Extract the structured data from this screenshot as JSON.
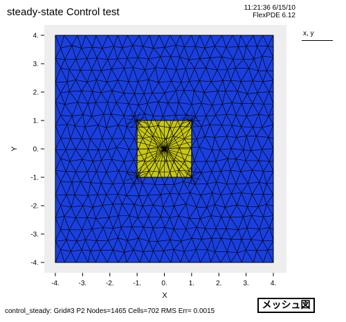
{
  "header": {
    "title": "steady-state Control test",
    "time": "11:21:36 6/15/10",
    "version": "FlexPDE 6.12"
  },
  "side_panel": {
    "label": "x, y"
  },
  "plot": {
    "x_ticks": [
      "-4.",
      "-3.",
      "-2.",
      "-1.",
      "0.",
      "1.",
      "2.",
      "3.",
      "4."
    ],
    "y_ticks": [
      "4.",
      "3.",
      "2.",
      "1.",
      "0.",
      "-1.",
      "-2.",
      "-3.",
      "-4."
    ],
    "x_label": "X",
    "y_label": "Y",
    "outer_region": {
      "xmin": -4,
      "xmax": 4,
      "ymin": -4,
      "ymax": 4,
      "color": "#1a3fe0"
    },
    "inner_region": {
      "xmin": -1,
      "xmax": 1,
      "ymin": -1,
      "ymax": 1,
      "color": "#c8c812"
    },
    "mesh_color": "#000000"
  },
  "footer": {
    "status": "control_steady:  Grid#3  P2  Nodes=1465 Cells=702 RMS Err= 0.0015"
  },
  "mesh_button": {
    "label": "メッシュ図"
  }
}
